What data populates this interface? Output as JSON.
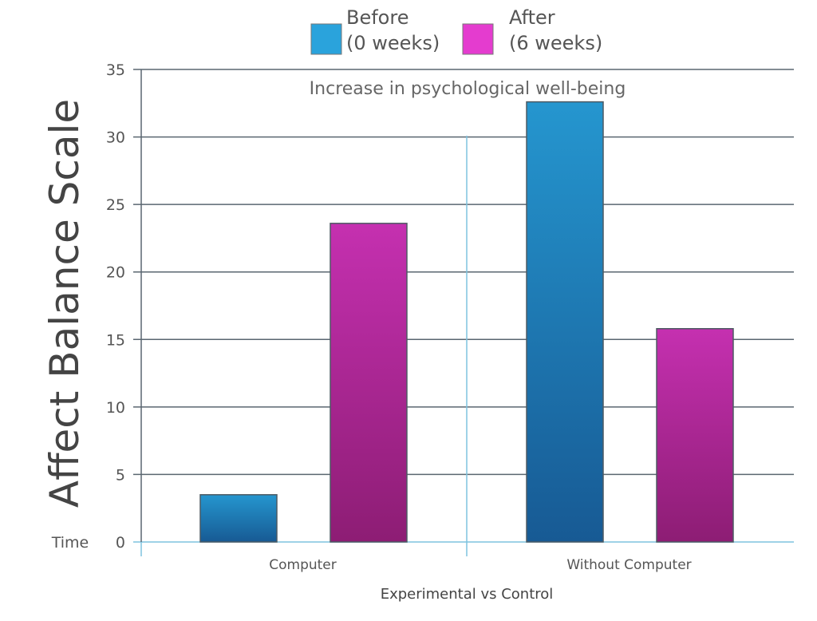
{
  "chart_data": {
    "type": "bar",
    "title": "",
    "annotation": "Increase in psychological well-being",
    "xlabel": "Experimental vs Control",
    "ylabel": "Affect Balance Scale",
    "ytick_side_label": "Time",
    "categories": [
      "Computer",
      "Without Computer"
    ],
    "series": [
      {
        "name": "Before\n(0 weeks)",
        "name_lines": [
          "Before",
          "(0 weeks)"
        ],
        "color": "#2aa3dc",
        "values": [
          3.5,
          32.6
        ]
      },
      {
        "name": "After\n(6 weeks)",
        "name_lines": [
          "After",
          "(6 weeks)"
        ],
        "color": "#e43ccf",
        "values": [
          23.6,
          15.8
        ]
      }
    ],
    "ylim": [
      0,
      35
    ],
    "yticks": [
      0,
      5,
      10,
      15,
      20,
      25,
      30,
      35
    ],
    "grid": true,
    "legend_position": "top-center"
  }
}
